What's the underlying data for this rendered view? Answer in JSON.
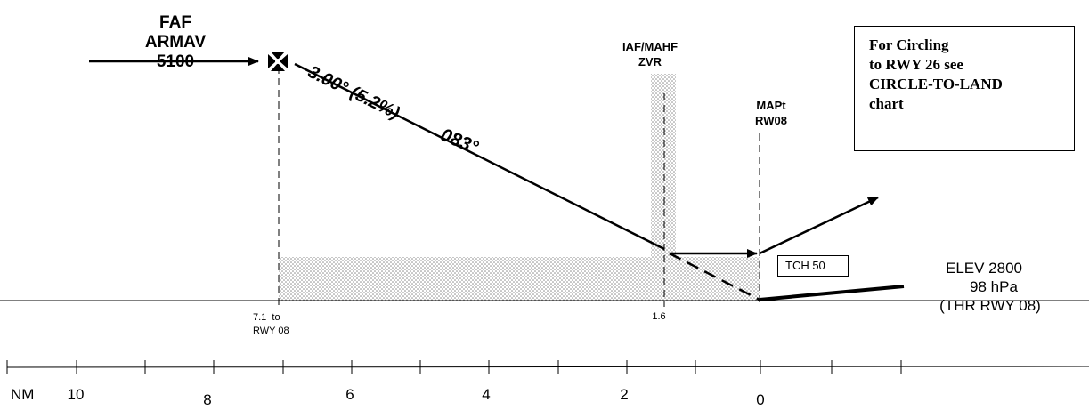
{
  "faf": {
    "line1": "FAF",
    "line2": "ARMAV",
    "line3": "5100"
  },
  "glide_slope": "3.00° (5.2%)",
  "course": "083°",
  "iaf": {
    "line1": "IAF/MAHF",
    "line2": "ZVR"
  },
  "mapt": {
    "line1": "MAPt",
    "line2": "RW08"
  },
  "circling_note": {
    "line1": "For Circling",
    "line2": "to RWY 26 see",
    "line3": "CIRCLE-TO-LAND",
    "line4": "chart"
  },
  "tch": "TCH 50",
  "elev": {
    "line1": "ELEV 2800",
    "line2": "98 hPa",
    "line3": "(THR RWY 08)"
  },
  "faf_dist": {
    "line1": "7.1  to",
    "line2": "RWY 08"
  },
  "iaf_dist": "1.6",
  "scale": {
    "unit": "NM",
    "labels": [
      "10",
      "8",
      "6",
      "4",
      "2",
      "0"
    ]
  },
  "colors": {
    "ink": "#000000",
    "shade": "#9a9a9a"
  }
}
